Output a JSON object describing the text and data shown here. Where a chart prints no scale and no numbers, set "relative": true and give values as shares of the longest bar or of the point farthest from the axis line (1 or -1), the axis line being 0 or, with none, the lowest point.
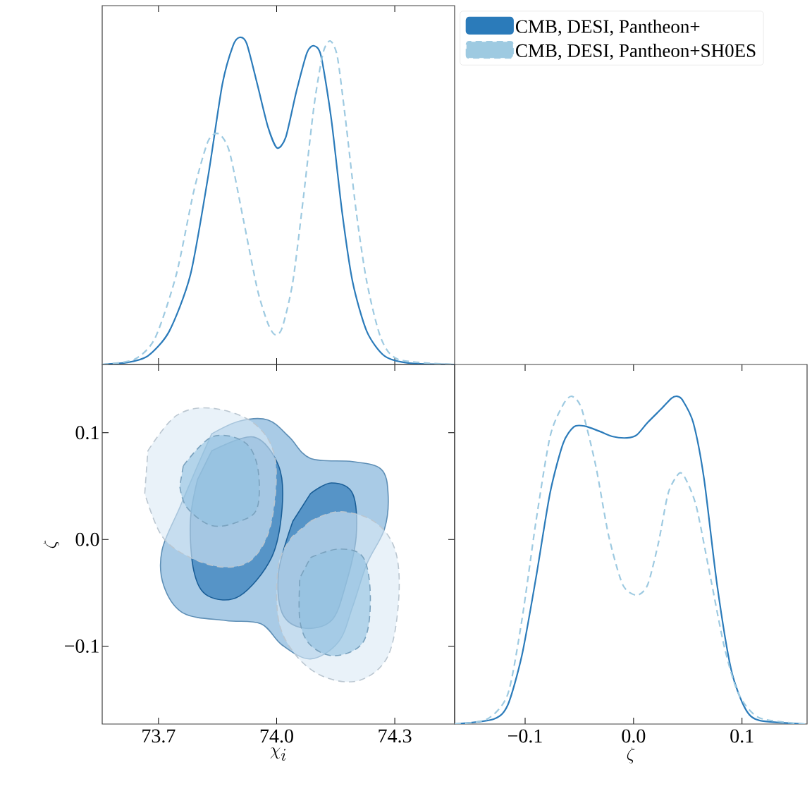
{
  "chart_data": [
    {
      "type": "line",
      "relative": true,
      "xlim": [
        73.557,
        74.452
      ],
      "xticks": [
        73.7,
        74.0,
        74.3
      ],
      "tick_labels": false,
      "legend": "top right",
      "series": [
        {
          "name": "CMB, DESI, Pantheon+",
          "color": "#2b7bba",
          "line_style": "solid",
          "x": [
            73.557,
            73.62,
            73.673,
            73.727,
            73.781,
            73.826,
            73.862,
            73.889,
            73.906,
            73.924,
            73.951,
            73.978,
            74.001,
            74.023,
            74.05,
            74.077,
            74.095,
            74.113,
            74.139,
            74.166,
            74.193,
            74.229,
            74.274,
            74.337,
            74.452
          ],
          "values": [
            0,
            0.006,
            0.026,
            0.101,
            0.274,
            0.575,
            0.856,
            0.974,
            1,
            0.981,
            0.856,
            0.726,
            0.662,
            0.694,
            0.834,
            0.953,
            0.974,
            0.942,
            0.748,
            0.468,
            0.252,
            0.101,
            0.026,
            0.004,
            0
          ]
        },
        {
          "name": "CMB, DESI, Pantheon+SH0ES",
          "color": "#9ecae1",
          "line_style": "dashed",
          "x": [
            73.557,
            73.638,
            73.691,
            73.745,
            73.79,
            73.826,
            73.853,
            73.88,
            73.915,
            73.951,
            73.978,
            73.996,
            74.014,
            74.041,
            74.068,
            74.095,
            74.118,
            74.136,
            74.154,
            74.175,
            74.202,
            74.229,
            74.265,
            74.31,
            74.452
          ],
          "values": [
            0,
            0.015,
            0.08,
            0.274,
            0.532,
            0.683,
            0.705,
            0.651,
            0.446,
            0.23,
            0.125,
            0.091,
            0.112,
            0.252,
            0.511,
            0.791,
            0.953,
            0.989,
            0.942,
            0.748,
            0.468,
            0.252,
            0.08,
            0.015,
            0
          ]
        }
      ]
    },
    {
      "type": "area",
      "xlabel": "\\chi_i",
      "ylabel": "\\zeta",
      "xlim": [
        73.557,
        74.452
      ],
      "ylim": [
        -0.173,
        0.164
      ],
      "xticks": [
        73.7,
        {
          "value": 74.0,
          "label": "74.0"
        },
        74.3
      ],
      "yticks": [
        {
          "value": -0.1,
          "label": "−0.1"
        },
        {
          "value": 0,
          "label": "0.0"
        },
        0.1
      ],
      "series": [
        {
          "color": "#6fa8d6",
          "line_style": "solid",
          "x": [
            73.835,
            73.906,
            73.978,
            74.032,
            74.086,
            74.193,
            74.265,
            74.283,
            74.274,
            74.229,
            74.193,
            74.157,
            74.086,
            74.014,
            73.96,
            73.871,
            73.763,
            73.713,
            73.709,
            73.754,
            73.799
          ],
          "values": [
            0.099,
            0.111,
            0.112,
            0.096,
            0.076,
            0.073,
            0.066,
            0.043,
            0.01,
            -0.023,
            -0.063,
            -0.096,
            -0.112,
            -0.099,
            -0.079,
            -0.076,
            -0.069,
            -0.043,
            -0.01,
            0.03,
            0.069
          ]
        },
        {
          "color": "#1f6fb2",
          "line_style": "solid",
          "x": [
            73.835,
            73.942,
            74.005,
            74.014,
            73.987,
            73.906,
            73.826,
            73.79,
            73.781,
            73.799
          ],
          "values": [
            0.083,
            0.096,
            0.069,
            0.03,
            -0.017,
            -0.053,
            -0.053,
            -0.03,
            0.017,
            0.056
          ]
        },
        {
          "color": "#1f6fb2",
          "line_style": "solid",
          "x": [
            74.086,
            74.139,
            74.193,
            74.202,
            74.175,
            74.139,
            74.068,
            74.014,
            74.005,
            74.041
          ],
          "values": [
            0.043,
            0.053,
            0.043,
            0.003,
            -0.043,
            -0.076,
            -0.083,
            -0.069,
            -0.03,
            0.017
          ]
        },
        {
          "color": "#dbe9f5",
          "line_style": "dashed",
          "x": [
            73.673,
            73.745,
            73.835,
            73.942,
            73.996,
            73.987,
            73.942,
            73.871,
            73.781,
            73.709,
            73.665
          ],
          "values": [
            0.083,
            0.116,
            0.123,
            0.109,
            0.076,
            0.017,
            -0.017,
            -0.026,
            -0.017,
            0.003,
            0.043
          ]
        },
        {
          "color": "#dbe9f5",
          "line_style": "dashed",
          "x": [
            74.086,
            74.157,
            74.247,
            74.301,
            74.31,
            74.283,
            74.211,
            74.122,
            74.05,
            74.005,
            74.005,
            74.041
          ],
          "values": [
            0.017,
            0.026,
            0.017,
            -0.01,
            -0.056,
            -0.109,
            -0.132,
            -0.129,
            -0.109,
            -0.076,
            -0.023,
            0.003
          ]
        },
        {
          "color": "#8fbfdf",
          "line_style": "dashed",
          "x": [
            73.763,
            73.835,
            73.915,
            73.951,
            73.951,
            73.906,
            73.835,
            73.772,
            73.754
          ],
          "values": [
            0.069,
            0.096,
            0.092,
            0.069,
            0.03,
            0.017,
            0.013,
            0.03,
            0.05
          ]
        },
        {
          "color": "#8fbfdf",
          "line_style": "dashed",
          "x": [
            74.086,
            74.157,
            74.22,
            74.238,
            74.22,
            74.148,
            74.086,
            74.059,
            74.059
          ],
          "values": [
            -0.017,
            -0.009,
            -0.017,
            -0.056,
            -0.096,
            -0.109,
            -0.099,
            -0.076,
            -0.036
          ]
        }
      ]
    },
    {
      "type": "line",
      "relative": true,
      "xlabel": "\\zeta",
      "xlim": [
        -0.165,
        0.16
      ],
      "xticks": [
        {
          "value": -0.1,
          "label": "−0.1"
        },
        {
          "value": 0,
          "label": "0.0"
        },
        0.1
      ],
      "series": [
        {
          "color": "#2b7bba",
          "line_style": "solid",
          "x": [
            -0.165,
            -0.129,
            -0.116,
            -0.103,
            -0.09,
            -0.077,
            -0.065,
            -0.055,
            -0.045,
            -0.032,
            -0.019,
            -0.006,
            0.003,
            0.013,
            0.026,
            0.035,
            0.04,
            0.045,
            0.055,
            0.065,
            0.077,
            0.09,
            0.103,
            0.116,
            0.158
          ],
          "values": [
            0,
            0.015,
            0.058,
            0.209,
            0.446,
            0.705,
            0.856,
            0.907,
            0.909,
            0.894,
            0.877,
            0.873,
            0.882,
            0.92,
            0.963,
            0.994,
            1,
            0.989,
            0.92,
            0.748,
            0.425,
            0.166,
            0.047,
            0.011,
            0
          ]
        },
        {
          "color": "#9ecae1",
          "line_style": "dashed",
          "x": [
            -0.165,
            -0.135,
            -0.116,
            -0.103,
            -0.09,
            -0.077,
            -0.065,
            -0.057,
            -0.048,
            -0.035,
            -0.023,
            -0.01,
            0.003,
            0.013,
            0.023,
            0.032,
            0.042,
            0.048,
            0.058,
            0.071,
            0.084,
            0.097,
            0.116,
            0.158
          ],
          "values": [
            0,
            0.015,
            0.091,
            0.317,
            0.618,
            0.877,
            0.974,
            1,
            0.963,
            0.79,
            0.575,
            0.425,
            0.393,
            0.425,
            0.554,
            0.705,
            0.765,
            0.748,
            0.662,
            0.446,
            0.231,
            0.091,
            0.019,
            0
          ]
        }
      ]
    }
  ]
}
